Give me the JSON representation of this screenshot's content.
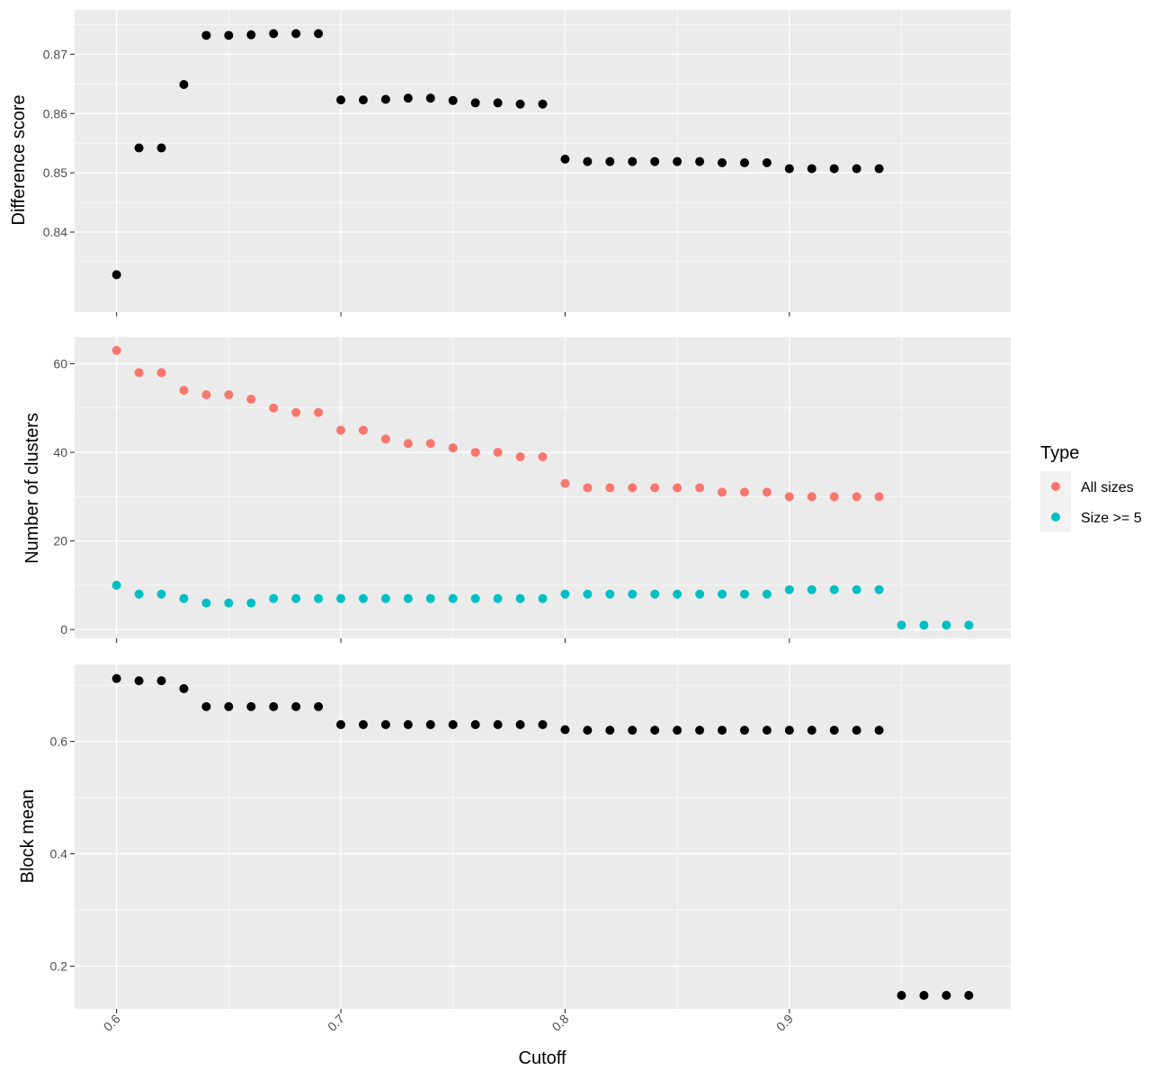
{
  "chart_data": [
    {
      "type": "scatter",
      "panel": "top",
      "ylabel": "Difference score",
      "ylim": [
        0.8265,
        0.8775
      ],
      "y_ticks": [
        0.84,
        0.85,
        0.86,
        0.87
      ],
      "grid": true,
      "series": [
        {
          "color": "#000000",
          "x": [
            0.6,
            0.61,
            0.62,
            0.63,
            0.64,
            0.65,
            0.66,
            0.67,
            0.68,
            0.69,
            0.7,
            0.71,
            0.72,
            0.73,
            0.74,
            0.75,
            0.76,
            0.77,
            0.78,
            0.79,
            0.8,
            0.81,
            0.82,
            0.83,
            0.84,
            0.85,
            0.86,
            0.87,
            0.88,
            0.89,
            0.9,
            0.91,
            0.92,
            0.93,
            0.94
          ],
          "y": [
            0.8328,
            0.8542,
            0.8542,
            0.8649,
            0.8732,
            0.8732,
            0.8733,
            0.8735,
            0.8735,
            0.8735,
            0.8623,
            0.8623,
            0.8624,
            0.8626,
            0.8626,
            0.8622,
            0.8618,
            0.8618,
            0.8616,
            0.8616,
            0.8523,
            0.8519,
            0.8519,
            0.8519,
            0.8519,
            0.8519,
            0.8519,
            0.8517,
            0.8517,
            0.8517,
            0.8507,
            0.8507,
            0.8507,
            0.8507,
            0.8507
          ]
        }
      ]
    },
    {
      "type": "scatter",
      "panel": "middle",
      "ylabel": "Number of clusters",
      "ylim": [
        -2,
        66
      ],
      "y_ticks": [
        0,
        20,
        40,
        60
      ],
      "grid": true,
      "legend": {
        "title": "Type",
        "position": "right"
      },
      "series": [
        {
          "name": "All sizes",
          "color": "#F8766D",
          "x": [
            0.6,
            0.61,
            0.62,
            0.63,
            0.64,
            0.65,
            0.66,
            0.67,
            0.68,
            0.69,
            0.7,
            0.71,
            0.72,
            0.73,
            0.74,
            0.75,
            0.76,
            0.77,
            0.78,
            0.79,
            0.8,
            0.81,
            0.82,
            0.83,
            0.84,
            0.85,
            0.86,
            0.87,
            0.88,
            0.89,
            0.9,
            0.91,
            0.92,
            0.93,
            0.94
          ],
          "y": [
            63,
            58,
            58,
            54,
            53,
            53,
            52,
            50,
            49,
            49,
            45,
            45,
            43,
            42,
            42,
            41,
            40,
            40,
            39,
            39,
            33,
            32,
            32,
            32,
            32,
            32,
            32,
            31,
            31,
            31,
            30,
            30,
            30,
            30,
            30
          ]
        },
        {
          "name": "Size >= 5",
          "color": "#00BFC4",
          "x": [
            0.6,
            0.61,
            0.62,
            0.63,
            0.64,
            0.65,
            0.66,
            0.67,
            0.68,
            0.69,
            0.7,
            0.71,
            0.72,
            0.73,
            0.74,
            0.75,
            0.76,
            0.77,
            0.78,
            0.79,
            0.8,
            0.81,
            0.82,
            0.83,
            0.84,
            0.85,
            0.86,
            0.87,
            0.88,
            0.89,
            0.9,
            0.91,
            0.92,
            0.93,
            0.94,
            0.95,
            0.96,
            0.97,
            0.98
          ],
          "y": [
            10,
            8,
            8,
            7,
            6,
            6,
            6,
            7,
            7,
            7,
            7,
            7,
            7,
            7,
            7,
            7,
            7,
            7,
            7,
            7,
            8,
            8,
            8,
            8,
            8,
            8,
            8,
            8,
            8,
            8,
            9,
            9,
            9,
            9,
            9,
            1,
            1,
            1,
            1
          ]
        }
      ]
    },
    {
      "type": "scatter",
      "panel": "bottom",
      "ylabel": "Block mean",
      "xlabel": "Cutoff",
      "ylim": [
        0.124,
        0.737
      ],
      "y_ticks": [
        0.2,
        0.4,
        0.6
      ],
      "x_ticks": [
        0.6,
        0.7,
        0.8,
        0.9
      ],
      "xlim": [
        0.5813,
        0.9987
      ],
      "grid": true,
      "series": [
        {
          "color": "#000000",
          "x": [
            0.6,
            0.61,
            0.62,
            0.63,
            0.64,
            0.65,
            0.66,
            0.67,
            0.68,
            0.69,
            0.7,
            0.71,
            0.72,
            0.73,
            0.74,
            0.75,
            0.76,
            0.77,
            0.78,
            0.79,
            0.8,
            0.81,
            0.82,
            0.83,
            0.84,
            0.85,
            0.86,
            0.87,
            0.88,
            0.89,
            0.9,
            0.91,
            0.92,
            0.93,
            0.94,
            0.95,
            0.96,
            0.97,
            0.98
          ],
          "y": [
            0.712,
            0.708,
            0.708,
            0.694,
            0.662,
            0.662,
            0.662,
            0.662,
            0.662,
            0.662,
            0.63,
            0.63,
            0.63,
            0.63,
            0.63,
            0.63,
            0.63,
            0.63,
            0.63,
            0.63,
            0.621,
            0.62,
            0.62,
            0.62,
            0.62,
            0.62,
            0.62,
            0.62,
            0.62,
            0.62,
            0.62,
            0.62,
            0.62,
            0.62,
            0.62,
            0.148,
            0.148,
            0.148,
            0.148
          ]
        }
      ]
    }
  ],
  "labels": {
    "x_axis_title": "Cutoff",
    "y_axis_titles": [
      "Difference score",
      "Number of clusters",
      "Block mean"
    ],
    "x_tick_labels": [
      "0.6",
      "0.7",
      "0.8",
      "0.9"
    ],
    "y_tick_labels_top": [
      "0.84",
      "0.85",
      "0.86",
      "0.87"
    ],
    "y_tick_labels_middle": [
      "0",
      "20",
      "40",
      "60"
    ],
    "y_tick_labels_bottom": [
      "0.2",
      "0.4",
      "0.6"
    ],
    "legend_title": "Type",
    "legend_items": [
      "All sizes",
      "Size >= 5"
    ]
  },
  "colors": {
    "panel_background": "#EBEBEB",
    "grid": "#FFFFFF",
    "tick": "#333333",
    "all_sizes": "#F8766D",
    "size_ge_5": "#00BFC4",
    "points": "#000000"
  }
}
